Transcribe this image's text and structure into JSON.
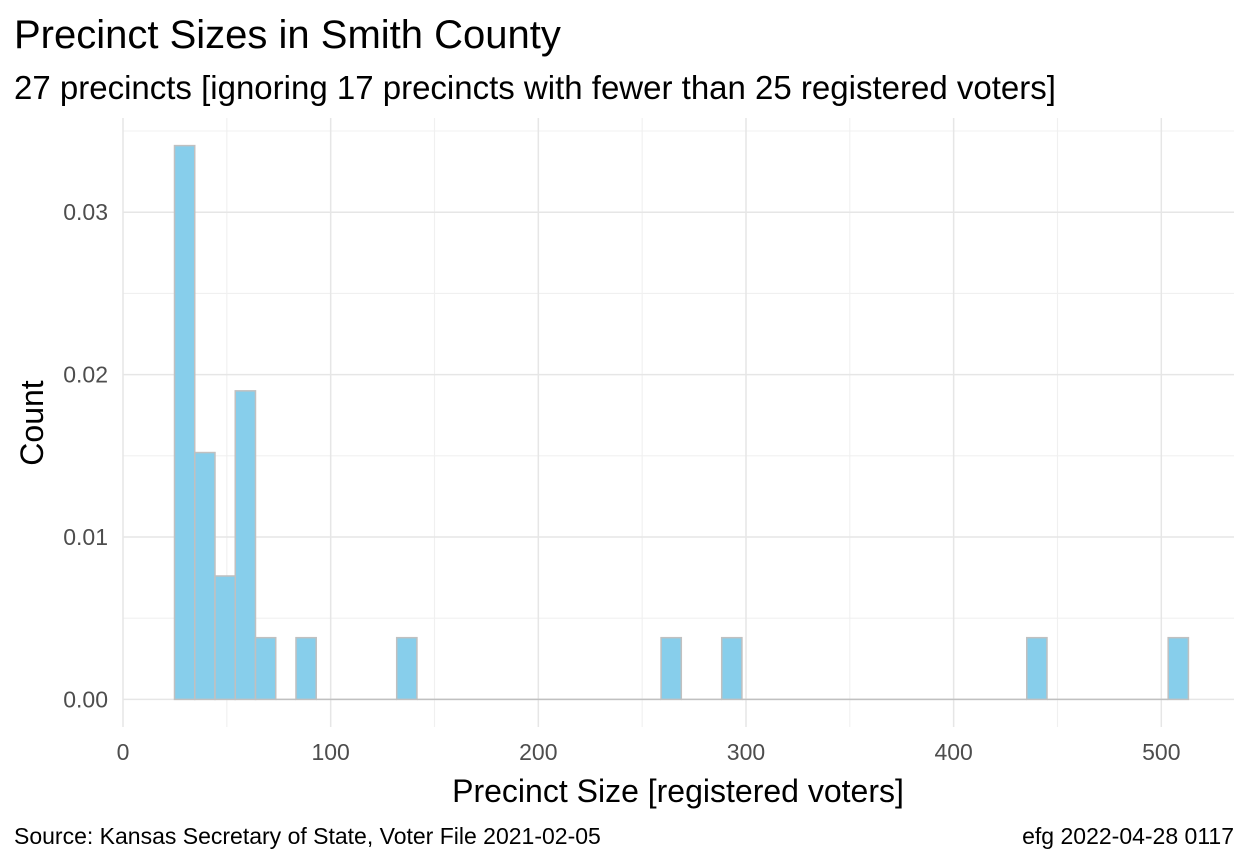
{
  "chart_data": {
    "type": "bar",
    "title": "Precinct Sizes in Smith County",
    "subtitle": "27 precincts [ignoring 17 precincts with fewer than 25 registered voters]",
    "xlabel": "Precinct Size [registered voters]",
    "ylabel": "Count",
    "xlim": [
      0,
      535
    ],
    "ylim": [
      -0.0017,
      0.0358
    ],
    "x_ticks": [
      0,
      100,
      200,
      300,
      400,
      500
    ],
    "x_tick_labels": [
      "0",
      "100",
      "200",
      "300",
      "400",
      "500"
    ],
    "y_ticks": [
      0,
      0.01,
      0.02,
      0.03
    ],
    "y_tick_labels": [
      "0.00",
      "0.01",
      "0.02",
      "0.03"
    ],
    "grid": true,
    "bin_width": 9.75,
    "bins": [
      {
        "x0": 24.8,
        "x1": 34.55,
        "value": 0.0341
      },
      {
        "x0": 34.55,
        "x1": 44.3,
        "value": 0.0152
      },
      {
        "x0": 44.3,
        "x1": 54.05,
        "value": 0.0076
      },
      {
        "x0": 54.05,
        "x1": 63.8,
        "value": 0.019
      },
      {
        "x0": 63.8,
        "x1": 73.55,
        "value": 0.0038
      },
      {
        "x0": 73.55,
        "x1": 83.3,
        "value": 0
      },
      {
        "x0": 83.3,
        "x1": 93.05,
        "value": 0.0038
      },
      {
        "x0": 93.05,
        "x1": 131.8,
        "value": 0
      },
      {
        "x0": 131.8,
        "x1": 141.55,
        "value": 0.0038
      },
      {
        "x0": 141.55,
        "x1": 259.1,
        "value": 0
      },
      {
        "x0": 259.1,
        "x1": 268.85,
        "value": 0.0038
      },
      {
        "x0": 268.85,
        "x1": 288.3,
        "value": 0
      },
      {
        "x0": 288.3,
        "x1": 298.05,
        "value": 0.0038
      },
      {
        "x0": 298.05,
        "x1": 435.2,
        "value": 0
      },
      {
        "x0": 435.2,
        "x1": 444.95,
        "value": 0.0038
      },
      {
        "x0": 444.95,
        "x1": 503.3,
        "value": 0
      },
      {
        "x0": 503.3,
        "x1": 513.05,
        "value": 0.0038
      }
    ]
  },
  "footer": {
    "source": "Source:  Kansas Secretary of State, Voter File  2021-02-05",
    "credit": "efg 2022-04-28 0117"
  },
  "colors": {
    "bar_fill": "#87ceeb",
    "bar_outline": "#c0c0c0"
  }
}
